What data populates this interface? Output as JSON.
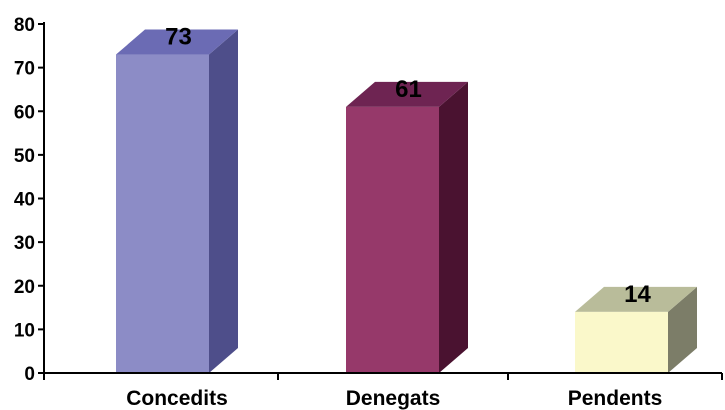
{
  "chart_data": {
    "type": "bar",
    "title": "",
    "xlabel": "",
    "ylabel": "",
    "categories": [
      "Concedits",
      "Denegats",
      "Pendents"
    ],
    "values": [
      73,
      61,
      14
    ],
    "data_labels": [
      "73",
      "61",
      "14"
    ],
    "ylim": [
      0,
      80
    ],
    "yticks": [
      0,
      10,
      20,
      30,
      40,
      50,
      60,
      70,
      80
    ],
    "grid": false,
    "legend": "none",
    "style": "3d-column",
    "colors": {
      "front": [
        "#8C8CC6",
        "#96396A",
        "#FAF8CA"
      ],
      "top": [
        "#6B6BB4",
        "#6E2452",
        "#B9BC9A"
      ],
      "side": [
        "#4E4E8A",
        "#4A1230",
        "#7C7D68"
      ],
      "axis": "#000000",
      "text": "#000000"
    }
  }
}
